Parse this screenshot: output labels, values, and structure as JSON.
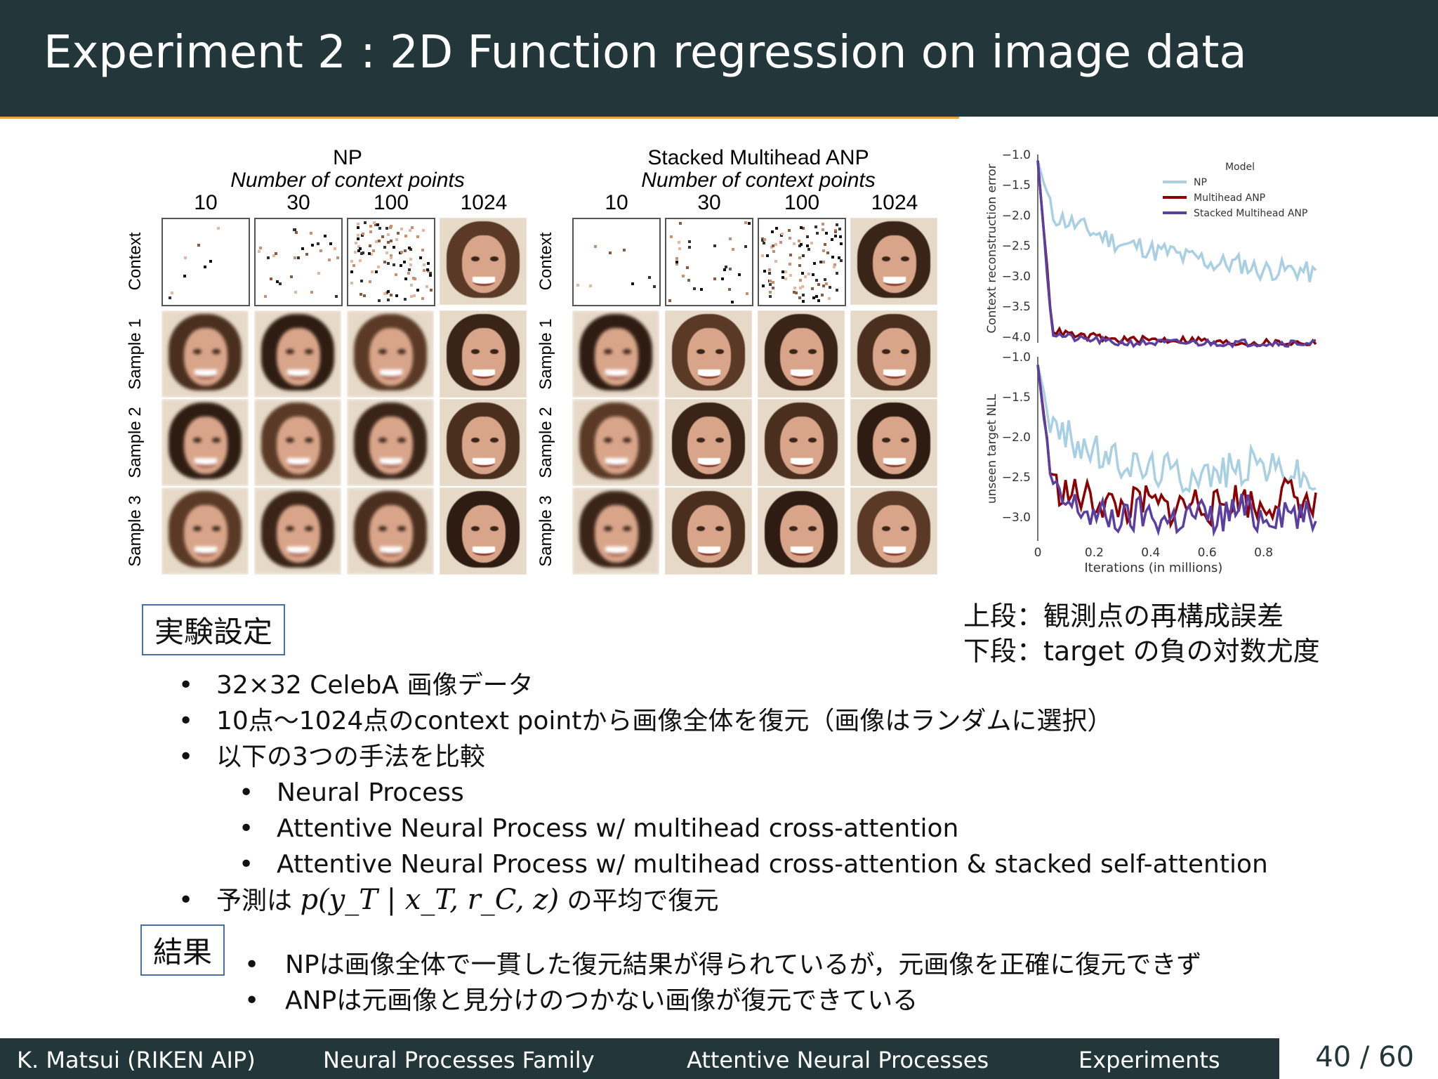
{
  "slide": {
    "title": "Experiment 2 : 2D Function regression on image data"
  },
  "figure": {
    "np_title": "NP",
    "anp_title": "Stacked Multihead ANP",
    "subtitle": "Number of context points",
    "context_counts": [
      "10",
      "30",
      "100",
      "1024"
    ],
    "row_labels": [
      "Context",
      "Sample 1",
      "Sample 2",
      "Sample 3"
    ]
  },
  "chart_data": [
    {
      "type": "line",
      "ylabel": "Context reconstruction error",
      "ylim": [
        -4.0,
        -1.0
      ],
      "yticks": [
        "−1.0",
        "−1.5",
        "−2.0",
        "−2.5",
        "−3.0",
        "−3.5",
        "−4.0"
      ],
      "xlim": [
        0,
        1.0
      ],
      "legend_title": "Model",
      "legend": "top-right",
      "series": [
        {
          "name": "NP",
          "color": "#a9cfe3",
          "values": [
            -1.1,
            -2.0,
            -2.1,
            -2.2,
            -2.3,
            -2.4,
            -2.5,
            -2.5,
            -2.6,
            -2.6,
            -2.7,
            -2.7,
            -2.8,
            -2.8,
            -2.8,
            -2.9,
            -2.9,
            -2.9,
            -2.9,
            -3.0
          ]
        },
        {
          "name": "Multihead ANP",
          "color": "#8b0000",
          "values": [
            -1.1,
            -3.9,
            -3.95,
            -4.0,
            -4.0,
            -4.05,
            -4.05,
            -4.05,
            -4.05,
            -4.05,
            -4.05,
            -4.05,
            -4.1,
            -4.1,
            -4.1,
            -4.1,
            -4.1,
            -4.1,
            -4.1,
            -4.1
          ]
        },
        {
          "name": "Stacked Multihead ANP",
          "color": "#5b3fa0",
          "values": [
            -1.1,
            -3.95,
            -4.0,
            -4.05,
            -4.05,
            -4.1,
            -4.1,
            -4.1,
            -4.1,
            -4.1,
            -4.1,
            -4.1,
            -4.1,
            -4.1,
            -4.1,
            -4.1,
            -4.1,
            -4.1,
            -4.1,
            -4.1
          ]
        }
      ]
    },
    {
      "type": "line",
      "ylabel": "unseen target NLL",
      "xlabel": "Iterations (in millions)",
      "ylim": [
        -3.3,
        -1.0
      ],
      "yticks": [
        "−1.0",
        "−1.5",
        "−2.0",
        "−2.5",
        "−3.0"
      ],
      "xlim": [
        0,
        1.0
      ],
      "xticks": [
        "0",
        "0.2",
        "0.4",
        "0.6",
        "0.8"
      ],
      "series": [
        {
          "values": [
            -1.1,
            -1.9,
            -2.0,
            -2.1,
            -2.2,
            -2.3,
            -2.3,
            -2.4,
            -2.4,
            -2.4,
            -2.5,
            -2.4,
            -2.5,
            -2.4,
            -2.4,
            -2.3,
            -2.4,
            -2.4,
            -2.5,
            -2.6
          ]
        },
        {
          "values": [
            -1.1,
            -2.6,
            -2.7,
            -2.75,
            -2.8,
            -2.85,
            -2.9,
            -2.8,
            -2.85,
            -2.9,
            -2.85,
            -2.8,
            -2.9,
            -2.8,
            -2.75,
            -2.9,
            -2.8,
            -2.7,
            -2.8,
            -2.9
          ]
        },
        {
          "values": [
            -1.1,
            -2.7,
            -2.85,
            -2.9,
            -3.0,
            -3.0,
            -3.05,
            -2.95,
            -3.0,
            -3.05,
            -3.0,
            -2.95,
            -3.05,
            -2.95,
            -2.9,
            -3.0,
            -2.95,
            -2.9,
            -3.0,
            -3.05
          ]
        }
      ]
    }
  ],
  "caption": {
    "line1": "上段：観測点の再構成誤差",
    "line2": "下段：target の負の対数尤度"
  },
  "setup": {
    "heading": "実験設定",
    "items": [
      "32×32 CelebA 画像データ",
      "10点〜1024点のcontext pointから画像全体を復元（画像はランダムに選択）",
      "以下の3つの手法を比較"
    ],
    "methods": [
      "Neural Process",
      "Attentive Neural Process w/ multihead cross-attention",
      "Attentive Neural Process w/ multihead cross-attention & stacked self-attention"
    ],
    "predict_prefix": "予測は",
    "predict_formula": "p(y_T | x_T, r_C, z)",
    "predict_suffix": "の平均で復元"
  },
  "results": {
    "heading": "結果",
    "items": [
      "NPは画像全体で一貫した復元結果が得られているが，元画像を正確に復元できず",
      "ANPは元画像と見分けのつかない画像が復元できている"
    ]
  },
  "footer": {
    "author": "K. Matsui (RIKEN AIP)",
    "section1": "Neural Processes Family",
    "section2": "Attentive Neural Processes",
    "section3": "Experiments",
    "page": "40 / 60"
  }
}
